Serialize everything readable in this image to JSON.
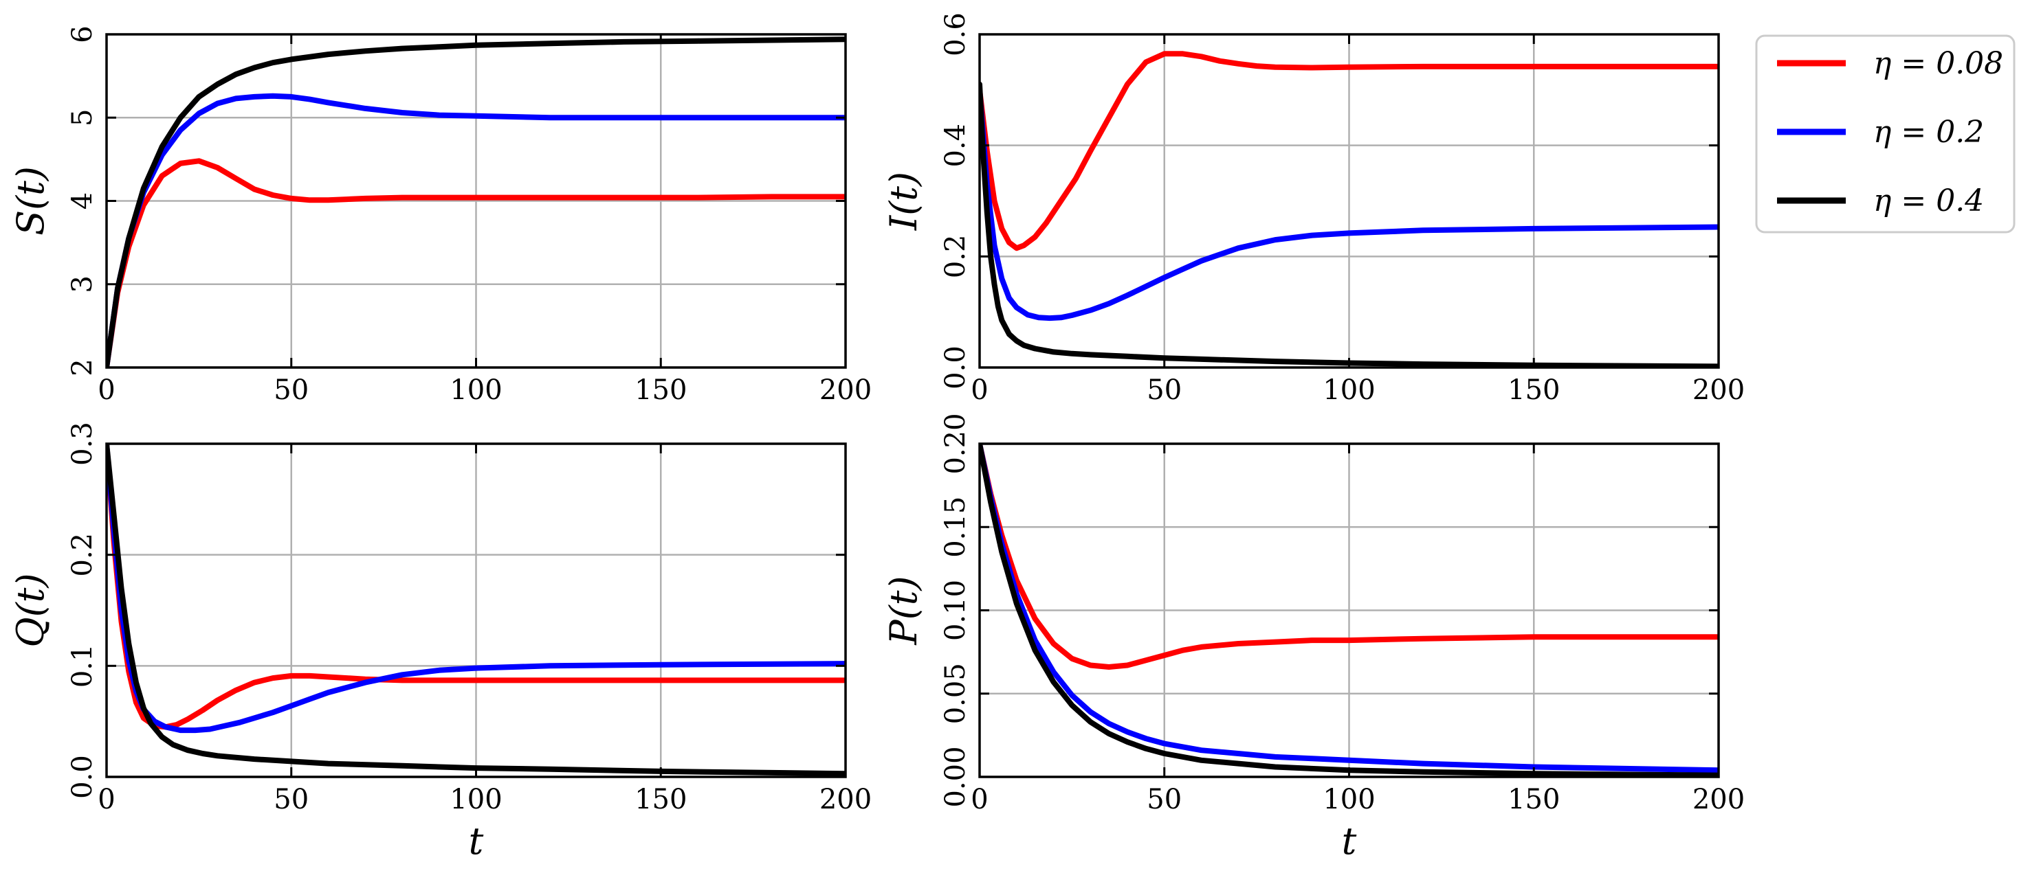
{
  "chart_data": [
    {
      "type": "line",
      "panel": "top-left",
      "ylabel": "S(t)",
      "xlabel": "",
      "xlim": [
        0,
        200
      ],
      "ylim": [
        2,
        6
      ],
      "xticks": [
        0,
        50,
        100,
        150,
        200
      ],
      "yticks": [
        2,
        3,
        4,
        5,
        6
      ],
      "xtick_labels": [
        "0",
        "50",
        "100",
        "150",
        "200"
      ],
      "ytick_labels": [
        "2",
        "3",
        "4",
        "5",
        "6"
      ],
      "series": [
        {
          "name": "η = 0.08",
          "color": "#ff0000",
          "x": [
            0,
            3,
            6,
            10,
            15,
            20,
            25,
            30,
            35,
            40,
            45,
            50,
            55,
            60,
            65,
            70,
            80,
            90,
            100,
            120,
            140,
            160,
            180,
            200
          ],
          "y": [
            2.0,
            2.9,
            3.45,
            3.95,
            4.3,
            4.45,
            4.48,
            4.4,
            4.27,
            4.14,
            4.07,
            4.03,
            4.01,
            4.01,
            4.02,
            4.03,
            4.04,
            4.04,
            4.04,
            4.04,
            4.04,
            4.04,
            4.05,
            4.05
          ]
        },
        {
          "name": "η = 0.2",
          "color": "#0000ff",
          "x": [
            0,
            3,
            6,
            10,
            15,
            20,
            25,
            30,
            35,
            40,
            45,
            50,
            55,
            60,
            70,
            80,
            90,
            100,
            110,
            120,
            140,
            160,
            180,
            200
          ],
          "y": [
            2.0,
            2.95,
            3.55,
            4.1,
            4.55,
            4.85,
            5.05,
            5.17,
            5.23,
            5.25,
            5.26,
            5.25,
            5.22,
            5.18,
            5.11,
            5.06,
            5.03,
            5.02,
            5.01,
            5.0,
            5.0,
            5.0,
            5.0,
            5.0
          ]
        },
        {
          "name": "η = 0.4",
          "color": "#000000",
          "x": [
            0,
            3,
            6,
            10,
            15,
            20,
            25,
            30,
            35,
            40,
            45,
            50,
            60,
            70,
            80,
            90,
            100,
            120,
            140,
            160,
            180,
            200
          ],
          "y": [
            2.0,
            2.95,
            3.55,
            4.15,
            4.65,
            5.0,
            5.25,
            5.4,
            5.52,
            5.6,
            5.66,
            5.7,
            5.76,
            5.8,
            5.83,
            5.85,
            5.87,
            5.89,
            5.91,
            5.92,
            5.93,
            5.94
          ]
        }
      ]
    },
    {
      "type": "line",
      "panel": "top-right",
      "ylabel": "I(t)",
      "xlabel": "",
      "xlim": [
        0,
        200
      ],
      "ylim": [
        0.0,
        0.6
      ],
      "xticks": [
        0,
        50,
        100,
        150,
        200
      ],
      "yticks": [
        0.0,
        0.2,
        0.4,
        0.6
      ],
      "xtick_labels": [
        "0",
        "50",
        "100",
        "150",
        "200"
      ],
      "ytick_labels": [
        "0.0",
        "0.2",
        "0.4",
        "0.6"
      ],
      "series": [
        {
          "name": "η = 0.08",
          "color": "#ff0000",
          "x": [
            0,
            2,
            4,
            6,
            8,
            10,
            12,
            15,
            18,
            22,
            26,
            30,
            35,
            40,
            45,
            50,
            55,
            60,
            65,
            70,
            75,
            80,
            90,
            100,
            120,
            150,
            200
          ],
          "y": [
            0.5,
            0.39,
            0.3,
            0.25,
            0.225,
            0.215,
            0.22,
            0.235,
            0.26,
            0.3,
            0.34,
            0.39,
            0.45,
            0.51,
            0.55,
            0.565,
            0.565,
            0.56,
            0.552,
            0.547,
            0.543,
            0.541,
            0.54,
            0.541,
            0.542,
            0.542,
            0.542
          ]
        },
        {
          "name": "η = 0.2",
          "color": "#0000ff",
          "x": [
            0,
            2,
            4,
            6,
            8,
            10,
            13,
            16,
            19,
            22,
            25,
            30,
            35,
            40,
            45,
            50,
            55,
            60,
            70,
            80,
            90,
            100,
            120,
            150,
            200
          ],
          "y": [
            0.5,
            0.33,
            0.22,
            0.16,
            0.125,
            0.108,
            0.095,
            0.09,
            0.089,
            0.09,
            0.094,
            0.103,
            0.115,
            0.13,
            0.146,
            0.162,
            0.177,
            0.192,
            0.215,
            0.23,
            0.238,
            0.242,
            0.247,
            0.25,
            0.253
          ]
        },
        {
          "name": "η = 0.4",
          "color": "#000000",
          "x": [
            0,
            1,
            2,
            3,
            4,
            5,
            6,
            8,
            10,
            12,
            15,
            20,
            25,
            30,
            40,
            50,
            60,
            80,
            100,
            120,
            150,
            200
          ],
          "y": [
            0.51,
            0.38,
            0.28,
            0.2,
            0.15,
            0.11,
            0.085,
            0.06,
            0.048,
            0.04,
            0.034,
            0.028,
            0.025,
            0.023,
            0.02,
            0.017,
            0.015,
            0.011,
            0.008,
            0.006,
            0.004,
            0.002
          ]
        }
      ]
    },
    {
      "type": "line",
      "panel": "bottom-left",
      "ylabel": "Q(t)",
      "xlabel": "t",
      "xlim": [
        0,
        200
      ],
      "ylim": [
        0.0,
        0.3
      ],
      "xticks": [
        0,
        50,
        100,
        150,
        200
      ],
      "yticks": [
        0.0,
        0.1,
        0.2,
        0.3
      ],
      "xtick_labels": [
        "0",
        "50",
        "100",
        "150",
        "200"
      ],
      "ytick_labels": [
        "0.0",
        "0.1",
        "0.2",
        "0.3"
      ],
      "series": [
        {
          "name": "η = 0.08",
          "color": "#ff0000",
          "x": [
            0,
            2,
            4,
            6,
            8,
            10,
            13,
            16,
            19,
            22,
            26,
            30,
            35,
            40,
            45,
            50,
            55,
            60,
            70,
            80,
            100,
            120,
            150,
            200
          ],
          "y": [
            0.3,
            0.21,
            0.14,
            0.095,
            0.067,
            0.053,
            0.046,
            0.045,
            0.047,
            0.052,
            0.06,
            0.069,
            0.078,
            0.085,
            0.089,
            0.091,
            0.091,
            0.09,
            0.088,
            0.087,
            0.087,
            0.087,
            0.087,
            0.087
          ]
        },
        {
          "name": "η = 0.2",
          "color": "#0000ff",
          "x": [
            0,
            2,
            4,
            6,
            8,
            10,
            13,
            16,
            20,
            24,
            28,
            32,
            36,
            40,
            45,
            50,
            55,
            60,
            70,
            80,
            90,
            100,
            120,
            150,
            200
          ],
          "y": [
            0.3,
            0.22,
            0.15,
            0.105,
            0.077,
            0.061,
            0.05,
            0.045,
            0.042,
            0.042,
            0.043,
            0.046,
            0.049,
            0.053,
            0.058,
            0.064,
            0.07,
            0.076,
            0.085,
            0.092,
            0.096,
            0.098,
            0.1,
            0.101,
            0.102
          ]
        },
        {
          "name": "η = 0.4",
          "color": "#000000",
          "x": [
            0,
            2,
            4,
            6,
            8,
            10,
            12,
            15,
            18,
            22,
            26,
            30,
            40,
            50,
            60,
            80,
            100,
            120,
            150,
            200
          ],
          "y": [
            0.3,
            0.235,
            0.17,
            0.12,
            0.085,
            0.062,
            0.048,
            0.036,
            0.029,
            0.024,
            0.021,
            0.019,
            0.016,
            0.014,
            0.012,
            0.01,
            0.008,
            0.007,
            0.005,
            0.003
          ]
        }
      ]
    },
    {
      "type": "line",
      "panel": "bottom-right",
      "ylabel": "P(t)",
      "xlabel": "t",
      "xlim": [
        0,
        200
      ],
      "ylim": [
        0.0,
        0.2
      ],
      "xticks": [
        0,
        50,
        100,
        150,
        200
      ],
      "yticks": [
        0.0,
        0.05,
        0.1,
        0.15,
        0.2
      ],
      "xtick_labels": [
        "0",
        "50",
        "100",
        "150",
        "200"
      ],
      "ytick_labels": [
        "0.00",
        "0.05",
        "0.10",
        "0.15",
        "0.20"
      ],
      "series": [
        {
          "name": "η = 0.08",
          "color": "#ff0000",
          "x": [
            0,
            3,
            6,
            10,
            15,
            20,
            25,
            30,
            35,
            40,
            45,
            50,
            55,
            60,
            70,
            80,
            90,
            100,
            120,
            150,
            200
          ],
          "y": [
            0.2,
            0.17,
            0.145,
            0.118,
            0.095,
            0.08,
            0.071,
            0.067,
            0.066,
            0.067,
            0.07,
            0.073,
            0.076,
            0.078,
            0.08,
            0.081,
            0.082,
            0.082,
            0.083,
            0.084,
            0.084
          ]
        },
        {
          "name": "η = 0.2",
          "color": "#0000ff",
          "x": [
            0,
            3,
            6,
            10,
            15,
            20,
            25,
            30,
            35,
            40,
            45,
            50,
            60,
            70,
            80,
            90,
            100,
            120,
            150,
            200
          ],
          "y": [
            0.2,
            0.168,
            0.14,
            0.11,
            0.082,
            0.063,
            0.049,
            0.039,
            0.032,
            0.027,
            0.023,
            0.02,
            0.016,
            0.014,
            0.012,
            0.011,
            0.01,
            0.008,
            0.006,
            0.004
          ]
        },
        {
          "name": "η = 0.4",
          "color": "#000000",
          "x": [
            0,
            3,
            6,
            10,
            15,
            20,
            25,
            30,
            35,
            40,
            45,
            50,
            60,
            70,
            80,
            100,
            120,
            150,
            200
          ],
          "y": [
            0.2,
            0.165,
            0.135,
            0.104,
            0.076,
            0.057,
            0.043,
            0.033,
            0.026,
            0.021,
            0.017,
            0.014,
            0.01,
            0.008,
            0.006,
            0.004,
            0.003,
            0.002,
            0.001
          ]
        }
      ]
    }
  ],
  "legend": {
    "placement": "right of top-right panel",
    "entries": [
      {
        "label": "η = 0.08",
        "color": "#ff0000"
      },
      {
        "label": "η = 0.2",
        "color": "#0000ff"
      },
      {
        "label": "η = 0.4",
        "color": "#000000"
      }
    ]
  }
}
